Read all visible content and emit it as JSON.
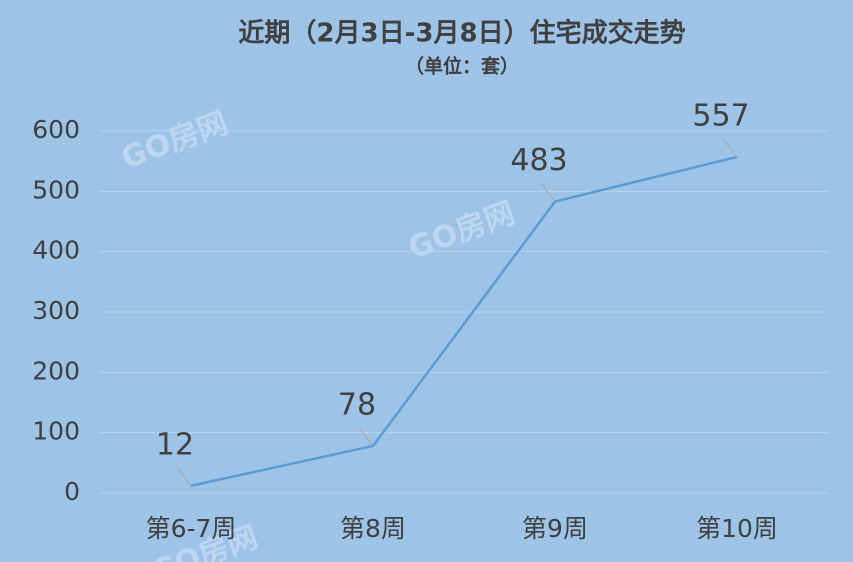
{
  "chart_data": {
    "type": "line",
    "title": "近期（2月3日-3月8日）住宅成交走势",
    "subtitle": "（单位：套）",
    "categories": [
      "第6-7周",
      "第8周",
      "第9周",
      "第10周"
    ],
    "series": [
      {
        "name": "住宅成交",
        "color": "#5b9bd5",
        "values": [
          12,
          78,
          483,
          557
        ]
      }
    ],
    "ylim": [
      0,
      600
    ],
    "yticks": [
      0,
      100,
      200,
      300,
      400,
      500,
      600
    ],
    "grid": true,
    "watermark": "GO房网"
  }
}
